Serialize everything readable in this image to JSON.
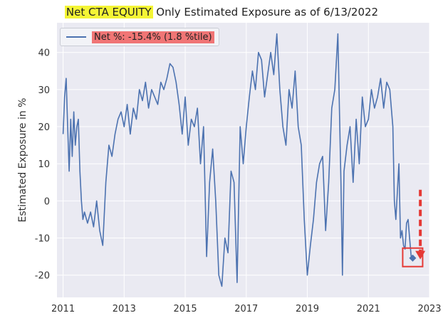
{
  "title": {
    "highlight": "Net CTA EQUITY",
    "rest": " Only Estimated Exposure as of 6/13/2022"
  },
  "colors": {
    "line": "#4c72b0",
    "plot_bg": "#eaeaf2",
    "grid": "#ffffff",
    "title_highlight": "#f4f535",
    "legend_highlight": "#f07575",
    "annotation": "#e53935"
  },
  "chart_data": {
    "type": "line",
    "title": "Net CTA EQUITY Only Estimated Exposure as of 6/13/2022",
    "xlabel": "",
    "ylabel": "Estimated Exposure in %",
    "xlim": [
      2010.8,
      2023.0
    ],
    "ylim": [
      -26,
      48
    ],
    "xticks": [
      2011,
      2013,
      2015,
      2017,
      2019,
      2021,
      2023
    ],
    "xtick_labels": [
      "2011",
      "2013",
      "2015",
      "2017",
      "2019",
      "2021",
      "2023"
    ],
    "yticks": [
      -20,
      -10,
      0,
      10,
      20,
      30,
      40
    ],
    "ytick_labels": [
      "-20",
      "-10",
      "0",
      "10",
      "20",
      "30",
      "40"
    ],
    "grid": true,
    "legend": {
      "placement": "top-left",
      "entries": [
        "Net %:  -15.4% (1.8 %tile)"
      ]
    },
    "series": [
      {
        "name": "Net %:  -15.4% (1.8 %tile)",
        "x": [
          2011.0,
          2011.05,
          2011.1,
          2011.15,
          2011.2,
          2011.25,
          2011.3,
          2011.35,
          2011.4,
          2011.45,
          2011.5,
          2011.55,
          2011.6,
          2011.65,
          2011.7,
          2011.8,
          2011.9,
          2012.0,
          2012.1,
          2012.2,
          2012.3,
          2012.4,
          2012.5,
          2012.6,
          2012.7,
          2012.8,
          2012.9,
          2013.0,
          2013.1,
          2013.2,
          2013.3,
          2013.4,
          2013.5,
          2013.6,
          2013.7,
          2013.8,
          2013.9,
          2014.0,
          2014.1,
          2014.2,
          2014.3,
          2014.4,
          2014.5,
          2014.6,
          2014.7,
          2014.8,
          2014.9,
          2015.0,
          2015.1,
          2015.2,
          2015.3,
          2015.4,
          2015.5,
          2015.6,
          2015.7,
          2015.8,
          2015.9,
          2016.0,
          2016.1,
          2016.2,
          2016.3,
          2016.4,
          2016.5,
          2016.6,
          2016.7,
          2016.8,
          2016.9,
          2017.0,
          2017.1,
          2017.2,
          2017.3,
          2017.4,
          2017.5,
          2017.6,
          2017.7,
          2017.8,
          2017.9,
          2018.0,
          2018.1,
          2018.2,
          2018.3,
          2018.4,
          2018.5,
          2018.6,
          2018.7,
          2018.8,
          2018.9,
          2019.0,
          2019.1,
          2019.2,
          2019.3,
          2019.4,
          2019.5,
          2019.6,
          2019.7,
          2019.8,
          2019.9,
          2020.0,
          2020.1,
          2020.15,
          2020.2,
          2020.3,
          2020.4,
          2020.5,
          2020.6,
          2020.7,
          2020.8,
          2020.9,
          2021.0,
          2021.1,
          2021.2,
          2021.3,
          2021.4,
          2021.5,
          2021.6,
          2021.7,
          2021.8,
          2021.85,
          2021.9,
          2022.0,
          2022.05,
          2022.1,
          2022.15,
          2022.2,
          2022.25,
          2022.3,
          2022.35,
          2022.4,
          2022.45
        ],
        "values": [
          18,
          28,
          33,
          20,
          8,
          22,
          12,
          24,
          15,
          20,
          22,
          8,
          0,
          -5,
          -3,
          -6,
          -3,
          -7,
          0,
          -8,
          -12,
          5,
          15,
          12,
          18,
          22,
          24,
          20,
          26,
          18,
          25,
          22,
          30,
          27,
          32,
          25,
          30,
          28,
          26,
          32,
          30,
          33,
          37,
          36,
          32,
          26,
          18,
          28,
          15,
          22,
          20,
          25,
          10,
          20,
          -15,
          5,
          14,
          0,
          -20,
          -23,
          -10,
          -14,
          8,
          5,
          -22,
          20,
          10,
          20,
          28,
          35,
          30,
          40,
          38,
          28,
          34,
          40,
          34,
          45,
          30,
          20,
          15,
          30,
          25,
          35,
          20,
          15,
          -5,
          -20,
          -12,
          -5,
          5,
          10,
          12,
          -8,
          5,
          25,
          30,
          45,
          5,
          -20,
          8,
          15,
          20,
          5,
          22,
          10,
          28,
          20,
          22,
          30,
          25,
          28,
          33,
          25,
          32,
          30,
          20,
          0,
          -5,
          10,
          -10,
          -8,
          -12,
          -13,
          -6,
          -5,
          -10,
          -15,
          -15.4
        ]
      }
    ],
    "annotations": [
      {
        "type": "marker",
        "shape": "diamond",
        "x": 2022.45,
        "y": -15.4
      },
      {
        "type": "box",
        "x": 2022.45,
        "y": -15.4
      },
      {
        "type": "dashed-arrow",
        "from": [
          2022.7,
          3
        ],
        "to": [
          2022.7,
          -15
        ]
      }
    ]
  }
}
